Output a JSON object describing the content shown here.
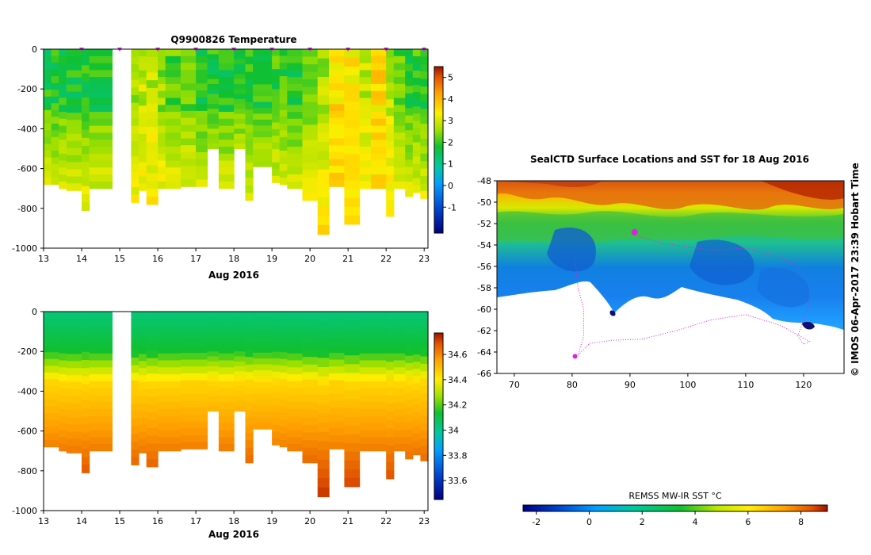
{
  "chart_data": [
    {
      "type": "heatmap",
      "id": "temperature",
      "title": "Q9900826  Temperature",
      "xlabel": "Aug 2016",
      "ylabel": "",
      "x_ticks": [
        "13",
        "14",
        "15",
        "16",
        "17",
        "18",
        "19",
        "20",
        "21",
        "22",
        "23"
      ],
      "xlim": [
        13,
        23.1
      ],
      "y_ticks": [
        "0",
        "-200",
        "-400",
        "-600",
        "-800",
        "-1000"
      ],
      "ylim": [
        -1000,
        0
      ],
      "colorbar_ticks": [
        "5",
        "4",
        "3",
        "2",
        "1",
        "0",
        "-1"
      ],
      "colorbar_range": [
        -2.2,
        5.5
      ],
      "profile_days": [
        13,
        13.2,
        13.4,
        13.6,
        14,
        14.2,
        15.3,
        15.5,
        15.7,
        16,
        16.2,
        16.6,
        17,
        17.3,
        17.6,
        18,
        18.3,
        18.5,
        19,
        19.2,
        19.4,
        19.8,
        20.2,
        20.5,
        20.9,
        21.3,
        21.6,
        22,
        22.2,
        22.5,
        22.7,
        22.9
      ],
      "profile_max_depth": [
        680,
        680,
        700,
        710,
        810,
        700,
        770,
        710,
        780,
        700,
        700,
        690,
        690,
        500,
        700,
        500,
        760,
        590,
        670,
        680,
        700,
        760,
        930,
        690,
        880,
        700,
        700,
        840,
        700,
        740,
        720,
        750
      ],
      "surface_markers": [
        14,
        15,
        16,
        17,
        18,
        19,
        20,
        21,
        22,
        23
      ]
    },
    {
      "type": "heatmap",
      "id": "salinity",
      "title": "",
      "xlabel": "Aug 2016",
      "ylabel": "",
      "x_ticks": [
        "13",
        "14",
        "15",
        "16",
        "17",
        "18",
        "19",
        "20",
        "21",
        "22",
        "23"
      ],
      "xlim": [
        13,
        23.1
      ],
      "y_ticks": [
        "0",
        "-200",
        "-400",
        "-600",
        "-800",
        "-1000"
      ],
      "ylim": [
        -1000,
        0
      ],
      "colorbar_ticks": [
        "34.6",
        "34.4",
        "34.2",
        "34",
        "33.8",
        "33.6"
      ],
      "colorbar_range": [
        33.45,
        34.77
      ]
    },
    {
      "type": "heatmap",
      "id": "sst_map",
      "title": "SealCTD Surface Locations and SST for 18 Aug 2016",
      "xlabel": "",
      "ylabel": "",
      "x_ticks": [
        "70",
        "80",
        "90",
        "100",
        "110",
        "120"
      ],
      "xlim": [
        67,
        127
      ],
      "y_ticks": [
        "-48",
        "-50",
        "-52",
        "-54",
        "-56",
        "-58",
        "-60",
        "-62",
        "-64",
        "-66"
      ],
      "ylim": [
        -66,
        -48
      ],
      "colorbar_label": "REMSS MW-IR SST °C",
      "colorbar_ticks": [
        "-2",
        "0",
        "2",
        "4",
        "6",
        "8"
      ],
      "colorbar_range": [
        -2.5,
        9
      ],
      "track_points": [
        [
          90.8,
          -52.8
        ],
        [
          91.5,
          -53.2
        ],
        [
          93,
          -53.4
        ],
        [
          95,
          -53.8
        ],
        [
          100,
          -54.2
        ],
        [
          105,
          -54.5
        ],
        [
          110,
          -54.3
        ],
        [
          115,
          -55
        ],
        [
          119,
          -56
        ],
        [
          121,
          -57.5
        ],
        [
          121,
          -59.5
        ],
        [
          120,
          -61
        ],
        [
          119,
          -62.5
        ],
        [
          120,
          -63.3
        ],
        [
          121,
          -63
        ],
        [
          116,
          -61.5
        ],
        [
          110,
          -60.5
        ],
        [
          104,
          -61
        ],
        [
          98,
          -62
        ],
        [
          92,
          -62.8
        ],
        [
          87,
          -62.9
        ],
        [
          83,
          -63.2
        ],
        [
          81,
          -64.3
        ],
        [
          82,
          -62.5
        ],
        [
          82,
          -60
        ],
        [
          81,
          -58
        ],
        [
          80.5,
          -55
        ]
      ],
      "track_end": [
        80.5,
        -64.4
      ]
    }
  ],
  "credit": "© IMOS 06-Apr-2017 23:39 Hobart Time"
}
